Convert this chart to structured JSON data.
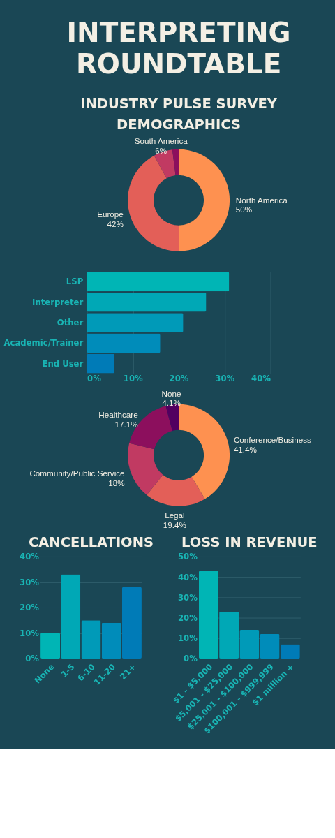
{
  "chart_data": [
    {
      "type": "other",
      "title": "INTERPRETING ROUNDTABLE",
      "subtitle": "INDUSTRY PULSE SURVEY"
    },
    {
      "type": "donut",
      "title": "DEMOGRAPHICS",
      "categories": [
        "North America",
        "Europe",
        "South America",
        null
      ],
      "values": [
        50,
        42,
        6,
        2
      ],
      "value_labels": [
        "50%",
        "42%",
        "6%",
        null
      ],
      "colors": [
        "#fe9150",
        "#e35f58",
        "#c13a62",
        "#8c0f5d"
      ]
    },
    {
      "type": "bar",
      "orientation": "horizontal",
      "categories": [
        "LSP",
        "Interpreter",
        "Other",
        "Academic/Trainer",
        "End User"
      ],
      "values": [
        31,
        26,
        21,
        16,
        6
      ],
      "colors": [
        "#00b5b5",
        "#00a8b6",
        "#009ab8",
        "#008cba",
        "#007bb7"
      ],
      "xlim": [
        0,
        40
      ],
      "xticks": [
        {
          "value": 0,
          "label": "0%"
        },
        {
          "value": 10,
          "label": "10%"
        },
        {
          "value": 20,
          "label": "20%"
        },
        {
          "value": 30,
          "label": "30%"
        },
        {
          "value": 40,
          "label": "40%"
        }
      ],
      "grid": "x"
    },
    {
      "type": "donut",
      "categories": [
        "Conference/Business",
        "Legal",
        "Community/Public Service",
        "Healthcare",
        "None"
      ],
      "values": [
        41.4,
        19.4,
        18,
        17.1,
        4.1
      ],
      "value_labels": [
        "41.4%",
        "19.4%",
        "18%",
        "17.1%",
        "4.1%"
      ],
      "colors": [
        "#fe9150",
        "#e35f58",
        "#c13a62",
        "#8c0f5d",
        "#520060"
      ]
    },
    {
      "type": "bar",
      "title": "CANCELLATIONS",
      "categories": [
        "None",
        "1-5",
        "6-10",
        "11-20",
        "21+"
      ],
      "values": [
        10,
        33,
        15,
        14,
        28
      ],
      "colors": [
        "#00b5b5",
        "#00a8b6",
        "#009ab8",
        "#008cba",
        "#007bb7"
      ],
      "ylim": [
        0,
        40
      ],
      "yticks": [
        {
          "value": 0,
          "label": "0%"
        },
        {
          "value": 10,
          "label": "10%"
        },
        {
          "value": 20,
          "label": "20%"
        },
        {
          "value": 30,
          "label": "30%"
        },
        {
          "value": 40,
          "label": "40%"
        }
      ],
      "grid": "y"
    },
    {
      "type": "bar",
      "title": "LOSS IN REVENUE",
      "categories": [
        "$1 - $5,000",
        "$5,001 - $25,000",
        "$25,001 - $100,000",
        "$100,001 - $999,999",
        "$1 million +"
      ],
      "values": [
        43,
        23,
        14,
        12,
        7
      ],
      "colors": [
        "#00b5b5",
        "#00a8b6",
        "#009ab8",
        "#008cba",
        "#007bb7"
      ],
      "ylim": [
        0,
        50
      ],
      "yticks": [
        {
          "value": 0,
          "label": "0%"
        },
        {
          "value": 10,
          "label": "10%"
        },
        {
          "value": 20,
          "label": "20%"
        },
        {
          "value": 30,
          "label": "30%"
        },
        {
          "value": 40,
          "label": "40%"
        },
        {
          "value": 50,
          "label": "50%"
        }
      ],
      "grid": "y"
    }
  ]
}
